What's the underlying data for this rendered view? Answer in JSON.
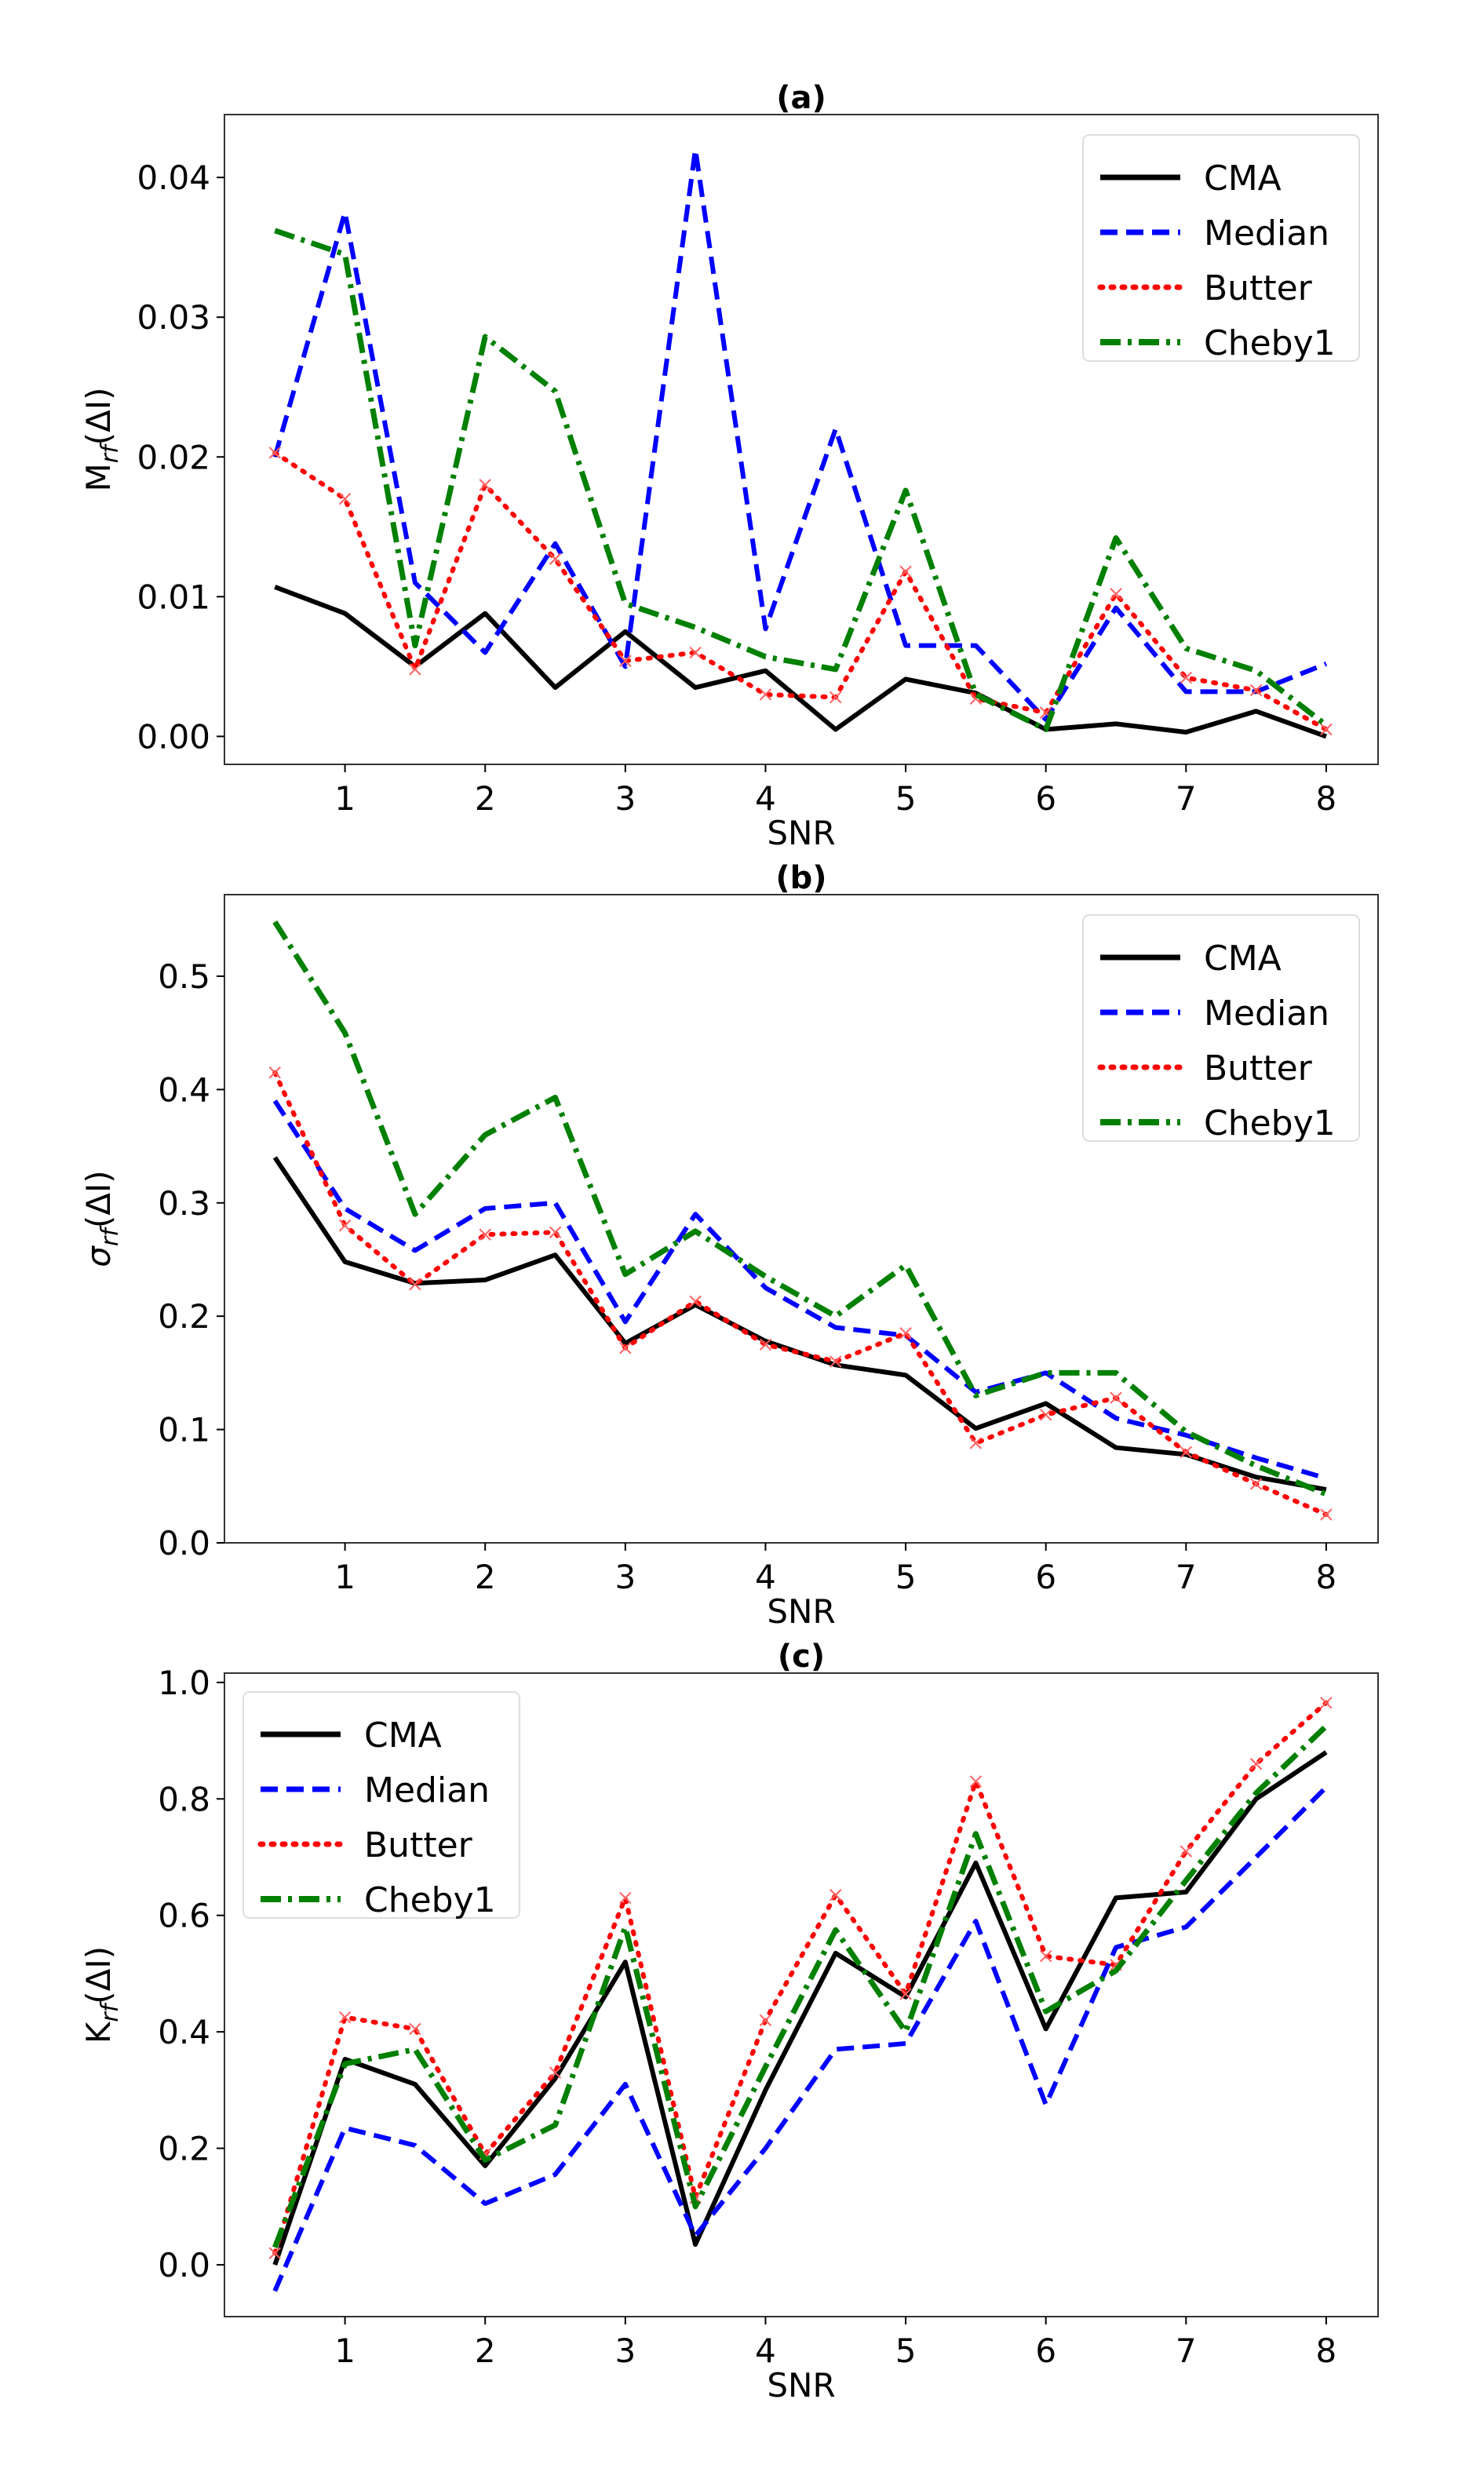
{
  "colors": {
    "CMA": "#000000",
    "Median": "#0000ff",
    "Butter": "#ff0000",
    "Cheby1": "#008000"
  },
  "chart_data": [
    {
      "type": "line",
      "title": "(a)",
      "xlabel": "SNR",
      "ylabel": {
        "main": "M",
        "sub": "rf",
        "rest": "(ΔI)"
      },
      "xlim": [
        0.14,
        8.37
      ],
      "ylim": [
        -0.002,
        0.0445
      ],
      "xticks": [
        1,
        2,
        3,
        4,
        5,
        6,
        7,
        8
      ],
      "xtick_labels": [
        "1",
        "2",
        "3",
        "4",
        "5",
        "6",
        "7",
        "8"
      ],
      "yticks": [
        0,
        0.01,
        0.02,
        0.03,
        0.04
      ],
      "ytick_labels": [
        "0.00",
        "0.01",
        "0.02",
        "0.03",
        "0.04"
      ],
      "legend": "top-right",
      "x": [
        0.5,
        1,
        1.5,
        2,
        2.5,
        3,
        3.5,
        4,
        4.5,
        5,
        5.5,
        6,
        6.5,
        7,
        7.5,
        8
      ],
      "series": [
        {
          "name": "CMA",
          "values": [
            0.0107,
            0.0088,
            0.005,
            0.0088,
            0.0035,
            0.0075,
            0.0035,
            0.0047,
            0.0005,
            0.0041,
            0.0031,
            0.0005,
            0.0009,
            0.0003,
            0.0018,
            0.0
          ]
        },
        {
          "name": "Median",
          "values": [
            0.02,
            0.0375,
            0.011,
            0.006,
            0.0138,
            0.005,
            0.042,
            0.0077,
            0.022,
            0.0065,
            0.0065,
            0.0012,
            0.0092,
            0.0032,
            0.0032,
            0.0052
          ]
        },
        {
          "name": "Butter",
          "values": [
            0.0203,
            0.017,
            0.0048,
            0.018,
            0.0127,
            0.0054,
            0.006,
            0.003,
            0.0028,
            0.0118,
            0.0027,
            0.0017,
            0.0102,
            0.0042,
            0.0033,
            0.0005
          ]
        },
        {
          "name": "Cheby1",
          "values": [
            0.0362,
            0.0345,
            0.0065,
            0.0286,
            0.0247,
            0.0095,
            0.0078,
            0.0057,
            0.0048,
            0.0176,
            0.003,
            0.0005,
            0.0142,
            0.0063,
            0.0047,
            0.0008
          ]
        }
      ]
    },
    {
      "type": "line",
      "title": "(b)",
      "xlabel": "SNR",
      "ylabel": {
        "main": "σ",
        "sub": "rf",
        "rest": "(ΔI)"
      },
      "xlim": [
        0.14,
        8.37
      ],
      "ylim": [
        0,
        0.572
      ],
      "xticks": [
        1,
        2,
        3,
        4,
        5,
        6,
        7,
        8
      ],
      "xtick_labels": [
        "1",
        "2",
        "3",
        "4",
        "5",
        "6",
        "7",
        "8"
      ],
      "yticks": [
        0,
        0.1,
        0.2,
        0.3,
        0.4,
        0.5
      ],
      "ytick_labels": [
        "0.0",
        "0.1",
        "0.2",
        "0.3",
        "0.4",
        "0.5"
      ],
      "legend": "top-right",
      "x": [
        0.5,
        1,
        1.5,
        2,
        2.5,
        3,
        3.5,
        4,
        4.5,
        5,
        5.5,
        6,
        6.5,
        7,
        7.5,
        8
      ],
      "series": [
        {
          "name": "CMA",
          "values": [
            0.34,
            0.248,
            0.229,
            0.232,
            0.254,
            0.176,
            0.21,
            0.178,
            0.157,
            0.148,
            0.101,
            0.123,
            0.084,
            0.078,
            0.058,
            0.047
          ]
        },
        {
          "name": "Median",
          "values": [
            0.39,
            0.295,
            0.258,
            0.295,
            0.3,
            0.195,
            0.29,
            0.225,
            0.19,
            0.183,
            0.133,
            0.15,
            0.11,
            0.095,
            0.075,
            0.057
          ]
        },
        {
          "name": "Butter",
          "values": [
            0.415,
            0.28,
            0.228,
            0.272,
            0.274,
            0.172,
            0.213,
            0.175,
            0.16,
            0.185,
            0.088,
            0.113,
            0.128,
            0.08,
            0.052,
            0.025
          ]
        },
        {
          "name": "Cheby1",
          "values": [
            0.548,
            0.45,
            0.29,
            0.36,
            0.393,
            0.237,
            0.275,
            0.235,
            0.2,
            0.245,
            0.13,
            0.15,
            0.15,
            0.098,
            0.068,
            0.043
          ]
        }
      ]
    },
    {
      "type": "line",
      "title": "(c)",
      "xlabel": "SNR",
      "ylabel": {
        "main": "K",
        "sub": "rf",
        "rest": "(ΔI)"
      },
      "xlim": [
        0.14,
        8.37
      ],
      "ylim": [
        -0.089,
        1.016
      ],
      "xticks": [
        1,
        2,
        3,
        4,
        5,
        6,
        7,
        8
      ],
      "xtick_labels": [
        "1",
        "2",
        "3",
        "4",
        "5",
        "6",
        "7",
        "8"
      ],
      "yticks": [
        0,
        0.2,
        0.4,
        0.6,
        0.8,
        1.0
      ],
      "ytick_labels": [
        "0.0",
        "0.2",
        "0.4",
        "0.6",
        "0.8",
        "1.0"
      ],
      "legend": "top-left",
      "x": [
        0.5,
        1,
        1.5,
        2,
        2.5,
        3,
        3.5,
        4,
        4.5,
        5,
        5.5,
        6,
        6.5,
        7,
        7.5,
        8
      ],
      "series": [
        {
          "name": "CMA",
          "values": [
            0.0,
            0.353,
            0.31,
            0.17,
            0.32,
            0.52,
            0.035,
            0.3,
            0.535,
            0.46,
            0.69,
            0.405,
            0.63,
            0.64,
            0.8,
            0.88
          ]
        },
        {
          "name": "Median",
          "values": [
            -0.045,
            0.235,
            0.205,
            0.105,
            0.155,
            0.31,
            0.05,
            0.2,
            0.37,
            0.38,
            0.59,
            0.275,
            0.545,
            0.58,
            0.7,
            0.82
          ]
        },
        {
          "name": "Butter",
          "values": [
            0.02,
            0.425,
            0.405,
            0.19,
            0.33,
            0.63,
            0.115,
            0.42,
            0.635,
            0.465,
            0.83,
            0.53,
            0.515,
            0.71,
            0.86,
            0.965
          ]
        },
        {
          "name": "Cheby1",
          "values": [
            0.03,
            0.345,
            0.37,
            0.18,
            0.24,
            0.58,
            0.1,
            0.34,
            0.575,
            0.4,
            0.74,
            0.435,
            0.505,
            0.66,
            0.81,
            0.925
          ]
        }
      ]
    }
  ]
}
